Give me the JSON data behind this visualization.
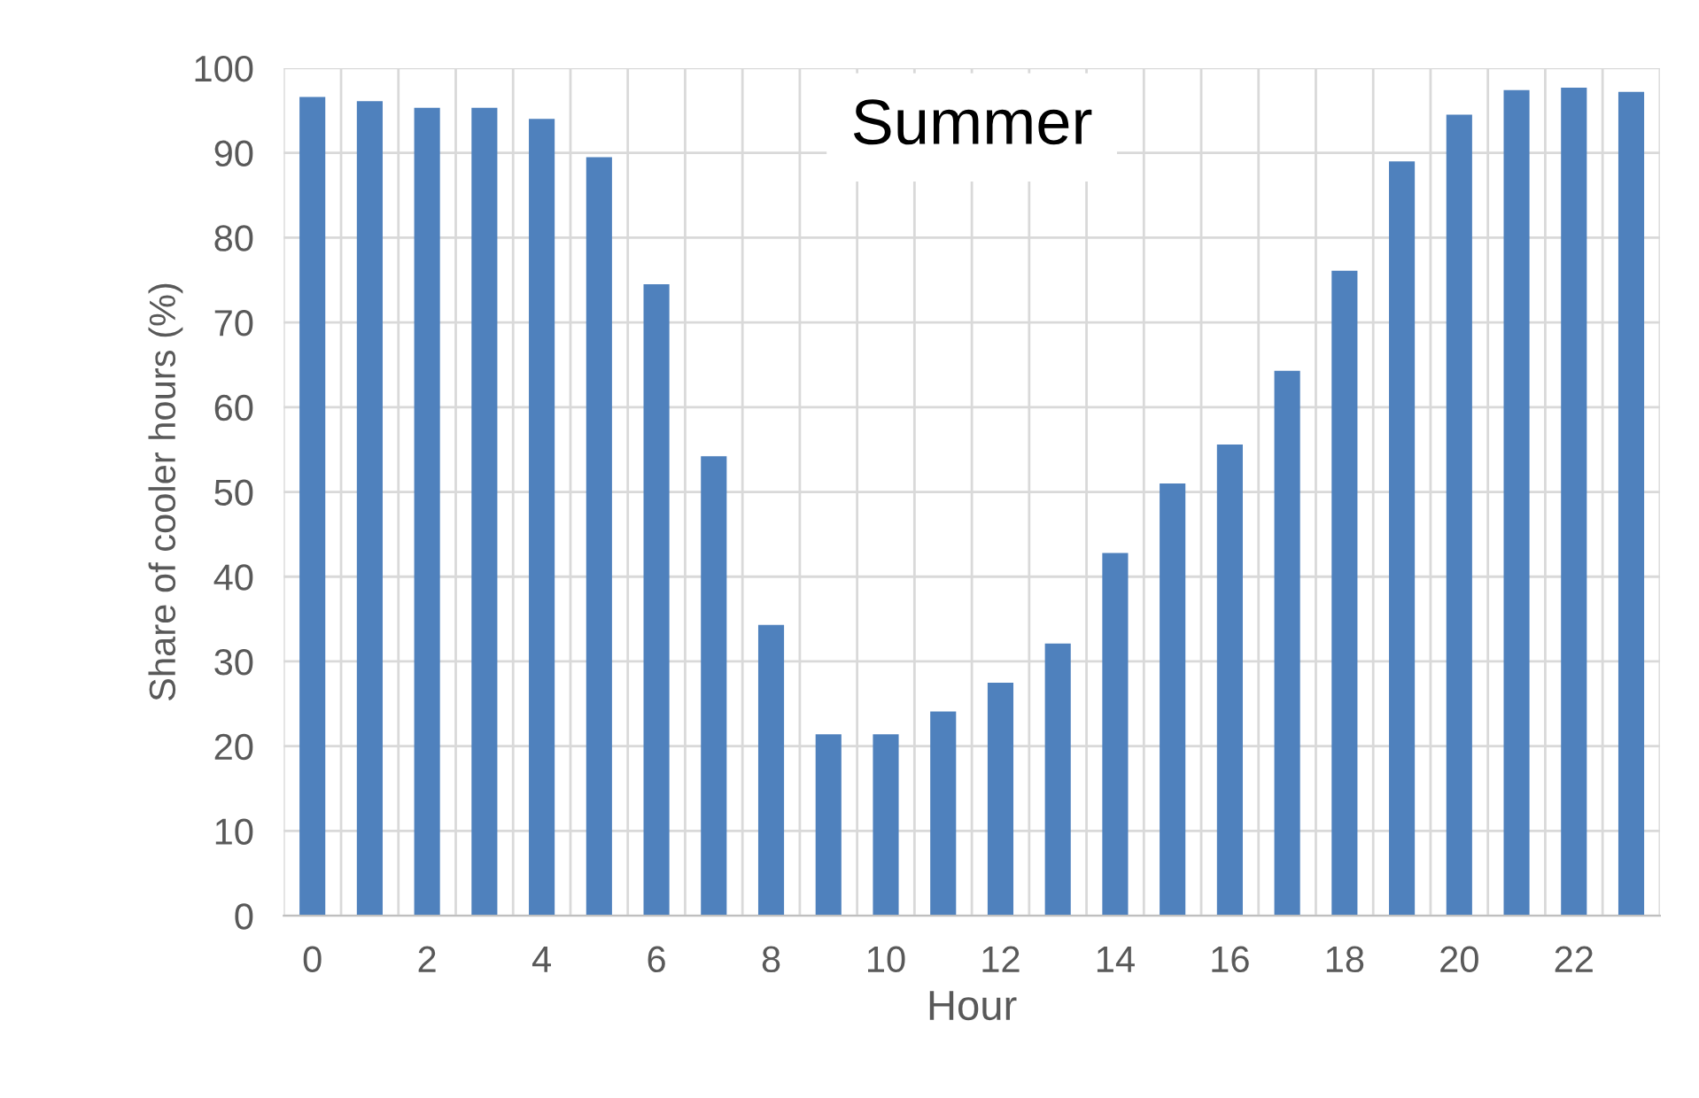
{
  "chart_data": {
    "type": "bar",
    "title": "Summer",
    "xlabel": "Hour",
    "ylabel": "Share of cooler hours (%)",
    "categories": [
      "0",
      null,
      "2",
      null,
      "4",
      null,
      "6",
      null,
      "8",
      null,
      "10",
      null,
      "12",
      null,
      "14",
      null,
      "16",
      null,
      "18",
      null,
      "20",
      null,
      "22",
      null
    ],
    "values": [
      96.6,
      96.1,
      95.3,
      95.3,
      94.0,
      89.5,
      74.5,
      54.2,
      34.3,
      21.4,
      21.4,
      24.1,
      27.5,
      32.1,
      42.8,
      51.0,
      55.6,
      64.3,
      76.1,
      89.0,
      94.5,
      97.4,
      97.7,
      97.2
    ],
    "color": "#4f81bd",
    "ylim": [
      0,
      100
    ],
    "yticks": [
      0,
      10,
      20,
      30,
      40,
      50,
      60,
      70,
      80,
      90,
      100
    ],
    "grid": true,
    "legend": false
  }
}
